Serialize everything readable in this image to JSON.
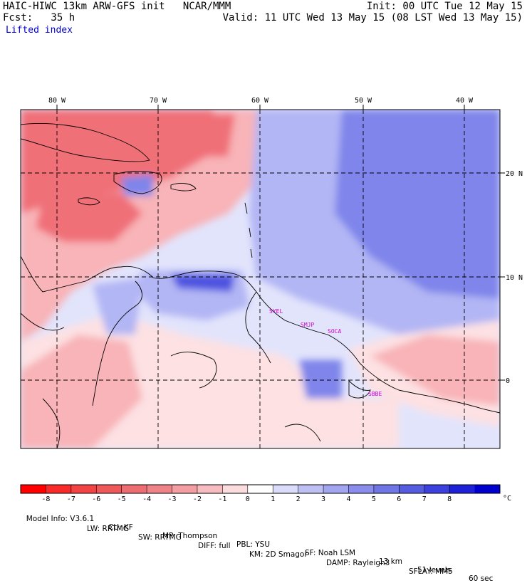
{
  "header": {
    "model_line": "HAIC-HIWC 13km ARW-GFS init   NCAR/MMM",
    "fcst_line": "Fcst:   35 h",
    "init_line": "Init: 00 UTC Tue 12 May 15",
    "valid_line": "Valid: 11 UTC Wed 13 May 15 (08 LST Wed 13 May 15)",
    "field_name": "Lifted index"
  },
  "map": {
    "longitude_labels": [
      "80 W",
      "70 W",
      "60 W",
      "50 W",
      "40 W"
    ],
    "latitude_labels": [
      "20 N",
      "10 N",
      "0"
    ],
    "stations": [
      "SYEL",
      "SMJP",
      "SOCA",
      "SBBE"
    ],
    "colors": {
      "red_strong": "#e8404f",
      "red": "#f07078",
      "red_light": "#f8b4b8",
      "red_pale": "#fde1e3",
      "blue_pale": "#e2e4fc",
      "blue_light": "#b2b6f4",
      "blue": "#7f85ea",
      "blue_strong": "#4d52e0",
      "station_text": "#cc00cc"
    }
  },
  "colorbar": {
    "ticks": [
      "-8",
      "-7",
      "-6",
      "-5",
      "-4",
      "-3",
      "-2",
      "-1",
      "0",
      "1",
      "2",
      "3",
      "4",
      "5",
      "6",
      "7",
      "8"
    ],
    "unit": "°C",
    "colors": [
      "#ff0000",
      "#f82a2a",
      "#f24444",
      "#ee5a5a",
      "#ec6e72",
      "#ee8488",
      "#f29ea2",
      "#f6bcbf",
      "#fbdcde",
      "#ffffff",
      "#dadcfa",
      "#bec0f4",
      "#a2a6ee",
      "#8a8eea",
      "#7076e4",
      "#565ce0",
      "#3c40dc",
      "#1e22d6",
      "#0000cc"
    ]
  },
  "footer": {
    "line1_items": [
      "Model Info: V3.6.1",
      "CU: KF",
      "MP: Thompson",
      "PBL: YSU",
      "SF: Noah LSM",
      "13 km",
      "51 levels",
      "60 sec"
    ],
    "line2_items": [
      "LW: RRTMG",
      "SW: RRTMG",
      "DIFF: full",
      "KM: 2D Smagor",
      "DAMP: Rayleigh3",
      "SFLAY: MM5"
    ]
  }
}
